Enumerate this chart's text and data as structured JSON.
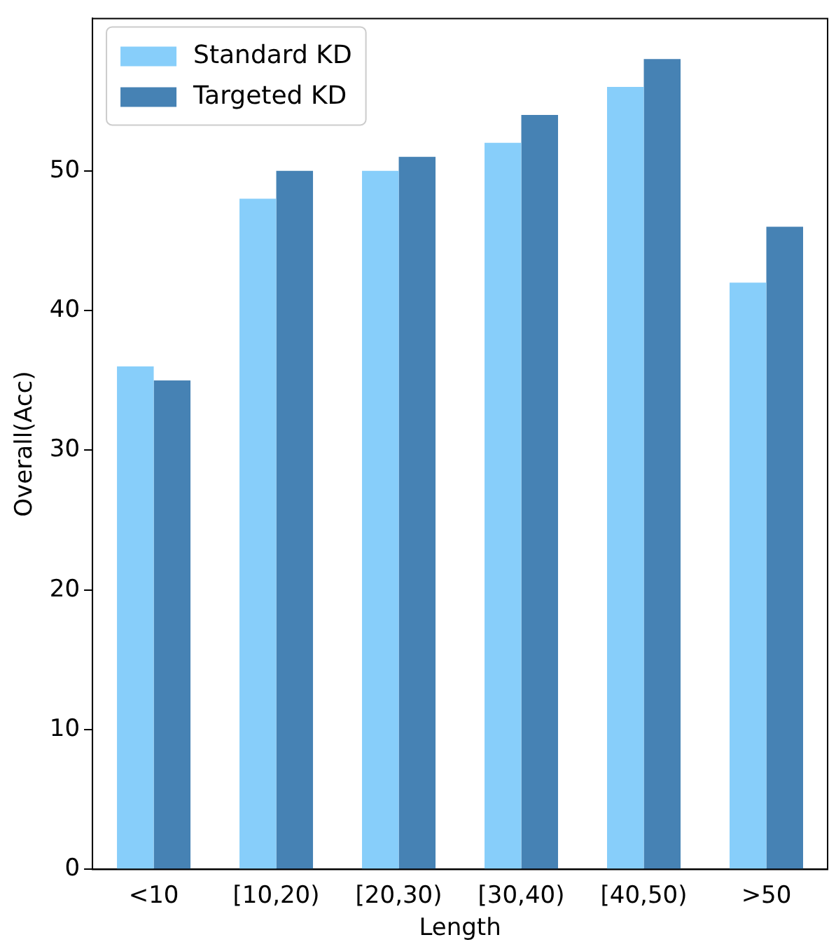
{
  "chart_data": {
    "type": "bar",
    "xlabel": "Length",
    "ylabel": "Overall(Acc)",
    "categories": [
      "<10",
      "[10,20)",
      "[20,30)",
      "[30,40)",
      "[40,50)",
      ">50"
    ],
    "series": [
      {
        "name": "Standard KD",
        "color": "#87cefa",
        "values": [
          36,
          48,
          50,
          52,
          56,
          42
        ]
      },
      {
        "name": "Targeted KD",
        "color": "#4682b4",
        "values": [
          35,
          50,
          51,
          54,
          58,
          46
        ]
      }
    ],
    "ylim": [
      0,
      60.9
    ],
    "yticks": [
      0,
      10,
      20,
      30,
      40,
      50
    ],
    "grid": false,
    "legend": "top left"
  }
}
